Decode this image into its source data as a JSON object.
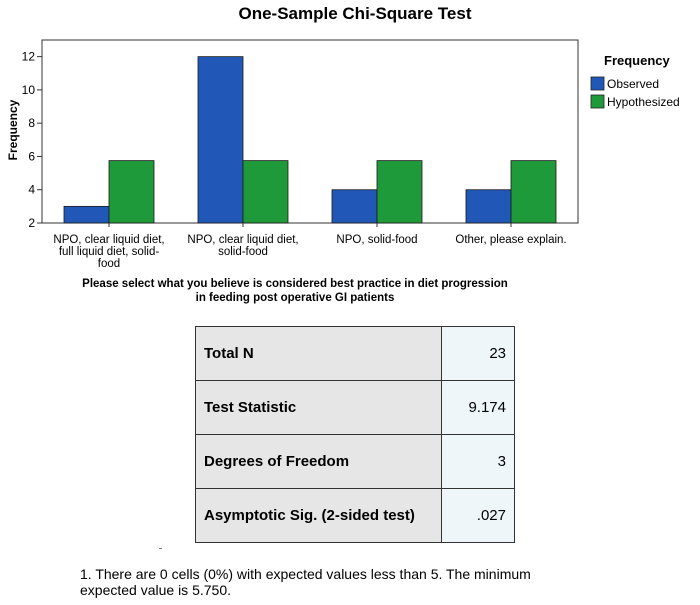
{
  "chart_data": {
    "type": "bar",
    "title": "One-Sample Chi-Square Test",
    "xlabel_line1": "Please select what you believe is considered best practice in diet progression",
    "xlabel_line2": "in feeding post operative GI patients",
    "ylabel": "Frequency",
    "ylim": [
      2,
      13
    ],
    "yticks": [
      2,
      4,
      6,
      8,
      10,
      12
    ],
    "grid": false,
    "legend_position": "right",
    "legend_title": "Frequency",
    "categories": [
      [
        "NPO, clear liquid diet,",
        "full liquid diet, solid-",
        "food"
      ],
      [
        "NPO, clear liquid diet,",
        "solid-food"
      ],
      [
        "NPO, solid-food"
      ],
      [
        "Other, please explain."
      ]
    ],
    "series": [
      {
        "name": "Observed",
        "color": "#2158b8",
        "values": [
          3,
          12,
          4,
          4
        ]
      },
      {
        "name": "Hypothesized",
        "color": "#1f9a3a",
        "values": [
          5.75,
          5.75,
          5.75,
          5.75
        ]
      }
    ]
  },
  "table": {
    "rows": [
      {
        "label": "Total N",
        "value": "23"
      },
      {
        "label": "Test Statistic",
        "value": "9.174"
      },
      {
        "label": "Degrees of Freedom",
        "value": "3"
      },
      {
        "label": "Asymptotic Sig. (2-sided test)",
        "value": ".027"
      }
    ]
  },
  "footnote": {
    "line1": "1.  There are 0 cells (0%) with expected values less than 5.  The minimum",
    "line2": "expected value is 5.750."
  }
}
